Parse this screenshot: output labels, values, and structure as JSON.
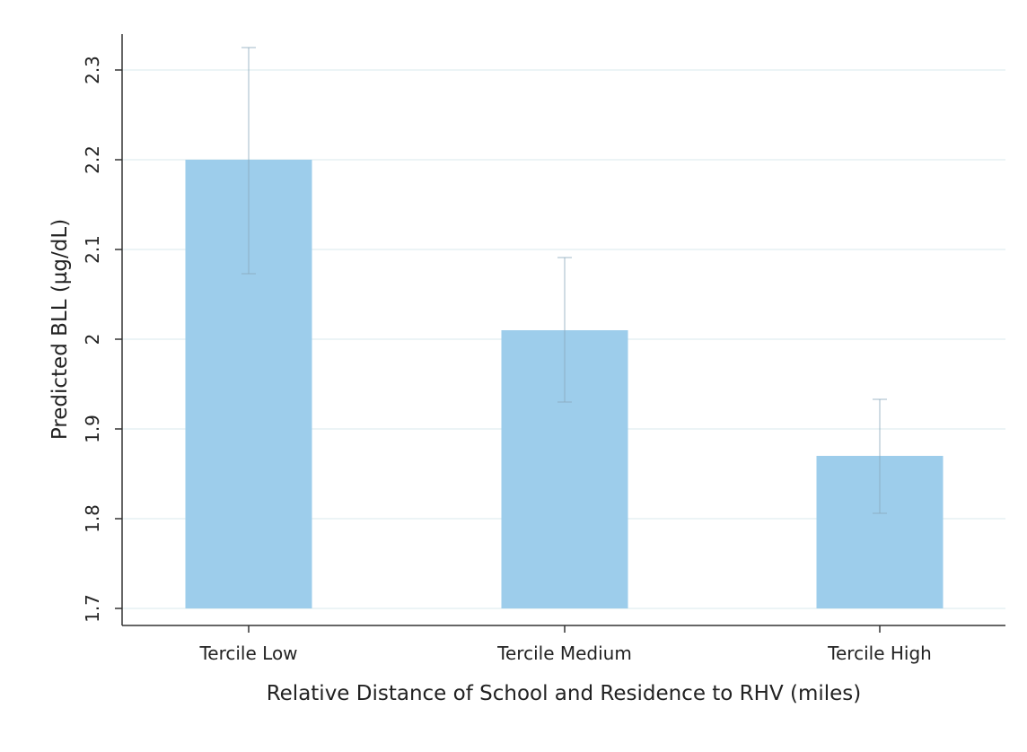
{
  "chart_data": {
    "type": "bar",
    "title": "",
    "xlabel": "Relative Distance of School and Residence to RHV (miles)",
    "ylabel": "Predicted BLL (µg/dL)",
    "categories": [
      "Tercile Low",
      "Tercile Medium",
      "Tercile High"
    ],
    "values": [
      2.2,
      2.01,
      1.87
    ],
    "error_low": [
      2.073,
      1.93,
      1.806
    ],
    "error_high": [
      2.325,
      2.091,
      1.933
    ],
    "ylim": [
      1.7,
      2.34
    ],
    "yticks": [
      1.7,
      1.8,
      1.9,
      2.0,
      2.1,
      2.2,
      2.3
    ],
    "ytick_labels": [
      "1.7",
      "1.8",
      "1.9",
      "2",
      "2.1",
      "2.2",
      "2.3"
    ],
    "grid": true,
    "bar_color": "#9dcdeb",
    "grid_color": "#e6f1f4",
    "error_bar_color": "#8aa9bb",
    "axis_color": "#333333"
  }
}
